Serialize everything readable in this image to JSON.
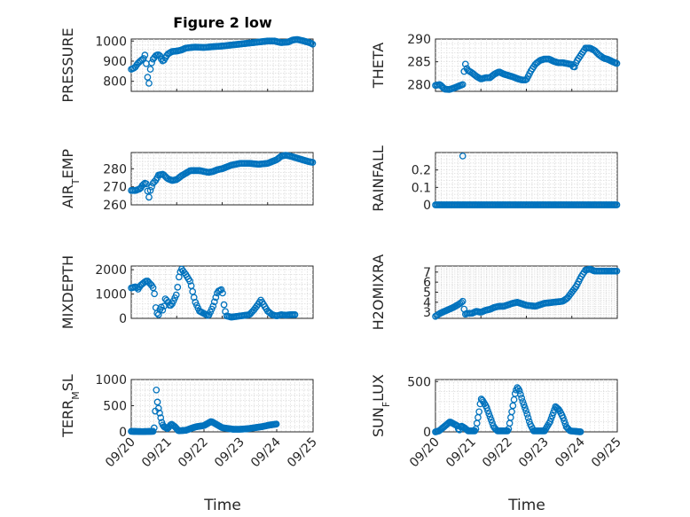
{
  "figure": {
    "title": "Figure 2 low"
  },
  "chart_data": [
    {
      "type": "scatter",
      "ylabel": "PRESSURE",
      "ylim": [
        750,
        1010
      ],
      "yticks": [
        800,
        900,
        1000
      ],
      "ytick_labels": [
        "800",
        "900",
        "1000"
      ],
      "x_range": [
        "2023-09-20",
        "2023-09-24"
      ],
      "marker_color": "#0072BD",
      "keyframes": [
        [
          0,
          860
        ],
        [
          0.08,
          868
        ],
        [
          0.14,
          888
        ],
        [
          0.22,
          905
        ],
        [
          0.28,
          915
        ],
        [
          0.3,
          930
        ],
        [
          0.32,
          905
        ],
        [
          0.34,
          870
        ],
        [
          0.35,
          845
        ],
        [
          0.36,
          820
        ],
        [
          0.37,
          800
        ],
        [
          0.38,
          760
        ],
        [
          0.4,
          820
        ],
        [
          0.43,
          880
        ],
        [
          0.48,
          910
        ],
        [
          0.55,
          930
        ],
        [
          0.62,
          932
        ],
        [
          0.68,
          900
        ],
        [
          0.72,
          905
        ],
        [
          0.8,
          935
        ],
        [
          0.9,
          948
        ],
        [
          1.0,
          950
        ],
        [
          1.1,
          955
        ],
        [
          1.2,
          965
        ],
        [
          1.4,
          970
        ],
        [
          1.6,
          968
        ],
        [
          1.8,
          972
        ],
        [
          2.0,
          975
        ],
        [
          2.2,
          980
        ],
        [
          2.4,
          985
        ],
        [
          2.6,
          990
        ],
        [
          2.8,
          995
        ],
        [
          3.0,
          1000
        ],
        [
          3.15,
          1000
        ],
        [
          3.3,
          992
        ],
        [
          3.45,
          995
        ],
        [
          3.55,
          1005
        ],
        [
          3.65,
          1008
        ],
        [
          3.8,
          1000
        ],
        [
          3.95,
          990
        ],
        [
          4.0,
          983
        ]
      ]
    },
    {
      "type": "scatter",
      "ylabel": "THETA",
      "ylim": [
        278.5,
        290
      ],
      "yticks": [
        280,
        285,
        290
      ],
      "ytick_labels": [
        "280",
        "285",
        "290"
      ],
      "x_range": [
        "2023-09-20",
        "2023-09-24"
      ],
      "marker_color": "#0072BD",
      "keyframes": [
        [
          0,
          279.8
        ],
        [
          0.1,
          280
        ],
        [
          0.2,
          279
        ],
        [
          0.3,
          278.9
        ],
        [
          0.4,
          279.2
        ],
        [
          0.5,
          279.6
        ],
        [
          0.6,
          280
        ],
        [
          0.65,
          284.8
        ],
        [
          0.7,
          283.2
        ],
        [
          0.8,
          282.6
        ],
        [
          0.9,
          281.8
        ],
        [
          1.0,
          281.2
        ],
        [
          1.1,
          281.5
        ],
        [
          1.2,
          281.5
        ],
        [
          1.3,
          282.3
        ],
        [
          1.4,
          282.8
        ],
        [
          1.5,
          282.3
        ],
        [
          1.6,
          282
        ],
        [
          1.7,
          281.7
        ],
        [
          1.8,
          281.3
        ],
        [
          1.9,
          281
        ],
        [
          2.0,
          281
        ],
        [
          2.1,
          283
        ],
        [
          2.2,
          284.5
        ],
        [
          2.3,
          285.3
        ],
        [
          2.4,
          285.6
        ],
        [
          2.5,
          285.6
        ],
        [
          2.6,
          285.1
        ],
        [
          2.7,
          284.8
        ],
        [
          2.8,
          284.8
        ],
        [
          2.9,
          284.6
        ],
        [
          3.0,
          284.4
        ],
        [
          3.05,
          283.6
        ],
        [
          3.1,
          285
        ],
        [
          3.2,
          286.5
        ],
        [
          3.3,
          288
        ],
        [
          3.4,
          288
        ],
        [
          3.5,
          287.5
        ],
        [
          3.6,
          286.5
        ],
        [
          3.7,
          285.8
        ],
        [
          3.8,
          285.5
        ],
        [
          3.9,
          285
        ],
        [
          4.0,
          284.6
        ]
      ]
    },
    {
      "type": "scatter",
      "ylabel": "AIR_TEMP",
      "ylim": [
        260,
        289
      ],
      "yticks": [
        260,
        270,
        280
      ],
      "ytick_labels": [
        "260",
        "270",
        "280"
      ],
      "x_range": [
        "2023-09-20",
        "2023-09-24"
      ],
      "marker_color": "#0072BD",
      "keyframes": [
        [
          0,
          268
        ],
        [
          0.1,
          268
        ],
        [
          0.2,
          269
        ],
        [
          0.25,
          271
        ],
        [
          0.3,
          272
        ],
        [
          0.32,
          272.5
        ],
        [
          0.35,
          270
        ],
        [
          0.38,
          263
        ],
        [
          0.42,
          268
        ],
        [
          0.48,
          272
        ],
        [
          0.55,
          274
        ],
        [
          0.6,
          276.5
        ],
        [
          0.7,
          277
        ],
        [
          0.8,
          274.5
        ],
        [
          0.9,
          273.5
        ],
        [
          1.0,
          274
        ],
        [
          1.1,
          276
        ],
        [
          1.2,
          277.5
        ],
        [
          1.3,
          279
        ],
        [
          1.5,
          279
        ],
        [
          1.7,
          278
        ],
        [
          1.8,
          278.5
        ],
        [
          1.9,
          279.5
        ],
        [
          2.0,
          280
        ],
        [
          2.2,
          282
        ],
        [
          2.4,
          283
        ],
        [
          2.6,
          283
        ],
        [
          2.8,
          282.5
        ],
        [
          3.0,
          283
        ],
        [
          3.2,
          285
        ],
        [
          3.3,
          287
        ],
        [
          3.4,
          287.5
        ],
        [
          3.5,
          287
        ],
        [
          3.7,
          285.5
        ],
        [
          3.9,
          284
        ],
        [
          4.0,
          283.5
        ]
      ]
    },
    {
      "type": "scatter",
      "ylabel": "RAINFALL",
      "ylim": [
        0,
        0.3
      ],
      "yticks": [
        0,
        0.1,
        0.2
      ],
      "ytick_labels": [
        "0",
        "0.1",
        "0.2"
      ],
      "x_range": [
        "2023-09-20",
        "2023-09-24"
      ],
      "marker_color": "#0072BD",
      "keyframes": [
        [
          0,
          0
        ],
        [
          4,
          0
        ]
      ],
      "extra_points": [
        [
          0.6,
          0.28
        ]
      ]
    },
    {
      "type": "scatter",
      "ylabel": "MIXDEPTH",
      "ylim": [
        0,
        2150
      ],
      "yticks": [
        0,
        1000,
        2000
      ],
      "ytick_labels": [
        "0",
        "1000",
        "2000"
      ],
      "x_range": [
        "2023-09-20",
        "2023-09-24"
      ],
      "marker_color": "#0072BD",
      "keyframes": [
        [
          0,
          1250
        ],
        [
          0.1,
          1300
        ],
        [
          0.15,
          1200
        ],
        [
          0.2,
          1350
        ],
        [
          0.3,
          1500
        ],
        [
          0.35,
          1550
        ],
        [
          0.4,
          1450
        ],
        [
          0.45,
          1350
        ],
        [
          0.5,
          1200
        ],
        [
          0.55,
          250
        ],
        [
          0.6,
          150
        ],
        [
          0.65,
          500
        ],
        [
          0.7,
          300
        ],
        [
          0.75,
          800
        ],
        [
          0.8,
          700
        ],
        [
          0.85,
          500
        ],
        [
          0.9,
          600
        ],
        [
          1.0,
          1000
        ],
        [
          1.05,
          1700
        ],
        [
          1.1,
          2050
        ],
        [
          1.2,
          1800
        ],
        [
          1.3,
          1500
        ],
        [
          1.4,
          700
        ],
        [
          1.5,
          300
        ],
        [
          1.6,
          200
        ],
        [
          1.7,
          100
        ],
        [
          1.8,
          500
        ],
        [
          1.9,
          1100
        ],
        [
          2.0,
          1200
        ],
        [
          2.05,
          400
        ],
        [
          2.1,
          100
        ],
        [
          2.2,
          50
        ],
        [
          2.4,
          100
        ],
        [
          2.6,
          150
        ],
        [
          2.7,
          350
        ],
        [
          2.8,
          600
        ],
        [
          2.85,
          750
        ],
        [
          2.9,
          600
        ],
        [
          3.0,
          300
        ],
        [
          3.1,
          150
        ],
        [
          3.2,
          100
        ],
        [
          3.3,
          150
        ],
        [
          3.4,
          130
        ],
        [
          3.5,
          150
        ],
        [
          3.6,
          150
        ]
      ]
    },
    {
      "type": "scatter",
      "ylabel": "H2OMIXRA",
      "ylim": [
        2.4,
        7.6
      ],
      "yticks": [
        3,
        4,
        5,
        6,
        7
      ],
      "ytick_labels": [
        "3",
        "4",
        "5",
        "6",
        "7"
      ],
      "x_range": [
        "2023-09-20",
        "2023-09-24"
      ],
      "marker_color": "#0072BD",
      "keyframes": [
        [
          0,
          2.6
        ],
        [
          0.1,
          2.9
        ],
        [
          0.2,
          3.1
        ],
        [
          0.3,
          3.3
        ],
        [
          0.4,
          3.5
        ],
        [
          0.55,
          3.9
        ],
        [
          0.6,
          4.1
        ],
        [
          0.65,
          2.8
        ],
        [
          0.7,
          2.9
        ],
        [
          0.8,
          2.9
        ],
        [
          0.9,
          3.1
        ],
        [
          1.0,
          3
        ],
        [
          1.1,
          3.2
        ],
        [
          1.2,
          3.3
        ],
        [
          1.3,
          3.5
        ],
        [
          1.4,
          3.6
        ],
        [
          1.5,
          3.6
        ],
        [
          1.7,
          3.9
        ],
        [
          1.8,
          4
        ],
        [
          2.0,
          3.7
        ],
        [
          2.2,
          3.6
        ],
        [
          2.4,
          3.9
        ],
        [
          2.6,
          4
        ],
        [
          2.8,
          4.1
        ],
        [
          2.9,
          4.4
        ],
        [
          3.0,
          5
        ],
        [
          3.1,
          5.6
        ],
        [
          3.2,
          6.5
        ],
        [
          3.3,
          7.2
        ],
        [
          3.4,
          7.3
        ],
        [
          3.5,
          7.1
        ],
        [
          3.7,
          7.1
        ],
        [
          3.9,
          7.1
        ],
        [
          4.0,
          7.1
        ]
      ]
    },
    {
      "type": "scatter",
      "ylabel": "TERR_MSL",
      "ylim": [
        0,
        1000
      ],
      "yticks": [
        0,
        500,
        1000
      ],
      "ytick_labels": [
        "0",
        "500",
        "1000"
      ],
      "x_range": [
        "2023-09-20",
        "2023-09-25"
      ],
      "marker_color": "#0072BD",
      "keyframes": [
        [
          0,
          10
        ],
        [
          0.3,
          5
        ],
        [
          0.6,
          10
        ],
        [
          0.65,
          120
        ],
        [
          0.68,
          950
        ],
        [
          0.7,
          650
        ],
        [
          0.75,
          450
        ],
        [
          0.8,
          300
        ],
        [
          0.85,
          150
        ],
        [
          0.9,
          100
        ],
        [
          1.0,
          60
        ],
        [
          1.1,
          150
        ],
        [
          1.2,
          100
        ],
        [
          1.3,
          20
        ],
        [
          1.5,
          30
        ],
        [
          1.7,
          80
        ],
        [
          1.8,
          100
        ],
        [
          2.0,
          120
        ],
        [
          2.2,
          200
        ],
        [
          2.4,
          120
        ],
        [
          2.5,
          80
        ],
        [
          2.7,
          60
        ],
        [
          2.8,
          50
        ],
        [
          3.0,
          50
        ],
        [
          3.2,
          60
        ],
        [
          3.4,
          80
        ],
        [
          3.6,
          100
        ],
        [
          3.8,
          130
        ],
        [
          4.0,
          150
        ]
      ]
    },
    {
      "type": "scatter",
      "ylabel": "SUN_FLUX",
      "ylim": [
        0,
        520
      ],
      "yticks": [
        0,
        500
      ],
      "ytick_labels": [
        "0",
        "500"
      ],
      "x_range": [
        "2023-09-20",
        "2023-09-25"
      ],
      "marker_color": "#0072BD",
      "keyframes": [
        [
          0,
          0
        ],
        [
          0.1,
          10
        ],
        [
          0.3,
          70
        ],
        [
          0.4,
          100
        ],
        [
          0.5,
          80
        ],
        [
          0.6,
          60
        ],
        [
          0.65,
          10
        ],
        [
          0.7,
          60
        ],
        [
          0.8,
          40
        ],
        [
          0.9,
          10
        ],
        [
          1.1,
          10
        ],
        [
          1.2,
          200
        ],
        [
          1.25,
          330
        ],
        [
          1.3,
          310
        ],
        [
          1.4,
          250
        ],
        [
          1.5,
          150
        ],
        [
          1.6,
          50
        ],
        [
          1.7,
          10
        ],
        [
          2.0,
          10
        ],
        [
          2.1,
          200
        ],
        [
          2.2,
          400
        ],
        [
          2.25,
          440
        ],
        [
          2.3,
          420
        ],
        [
          2.4,
          300
        ],
        [
          2.5,
          200
        ],
        [
          2.6,
          80
        ],
        [
          2.7,
          10
        ],
        [
          3.0,
          10
        ],
        [
          3.15,
          100
        ],
        [
          3.3,
          250
        ],
        [
          3.4,
          220
        ],
        [
          3.5,
          150
        ],
        [
          3.6,
          50
        ],
        [
          3.7,
          10
        ],
        [
          4.0,
          0
        ]
      ]
    }
  ],
  "xaxis": {
    "tick_labels_4": [
      "09/20",
      "09/21",
      "09/22",
      "09/23",
      "09/24"
    ],
    "tick_labels_5": [
      "09/20",
      "09/21",
      "09/22",
      "09/23",
      "09/24",
      "09/25"
    ],
    "xlabel": "Time"
  }
}
